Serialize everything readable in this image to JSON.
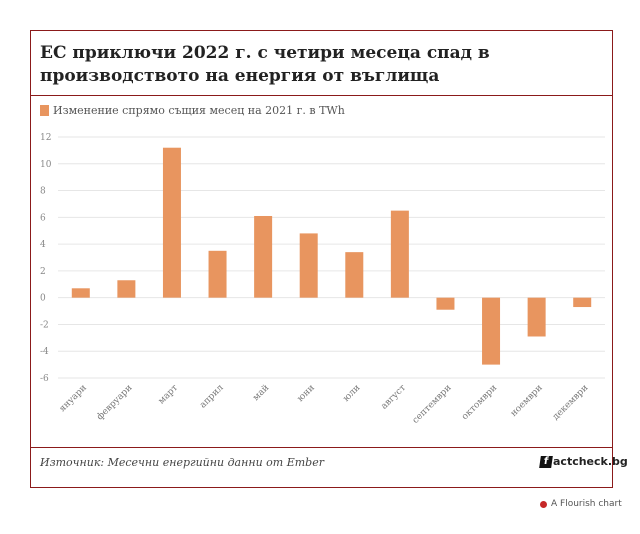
{
  "title": "ЕС приключи 2022 г. с четири месеца спад в производството на енергия от въглища",
  "legend": {
    "label": "Изменение спрямо същия месец на 2021 г. в TWh",
    "color": "#e8955f"
  },
  "source": "Източник: Месечни енергийни данни от Ember",
  "brand": {
    "mark": "f",
    "name": "actcheck.bg"
  },
  "flourish": "A Flourish chart",
  "chart_data": {
    "type": "bar",
    "categories": [
      "януари",
      "февруари",
      "март",
      "април",
      "май",
      "юни",
      "юли",
      "август",
      "септември",
      "октомври",
      "ноември",
      "декември"
    ],
    "series": [
      {
        "values": [
          0.7,
          1.3,
          11.2,
          3.5,
          6.1,
          4.8,
          3.4,
          6.5,
          -0.9,
          -5.0,
          -2.9,
          -0.7
        ]
      }
    ],
    "yticks": [
      12,
      10,
      8,
      6,
      4,
      2,
      0,
      -2,
      -4,
      -6
    ],
    "ylim": [
      -6,
      12
    ],
    "grid": true,
    "bar_color": "#e8955f",
    "legend_position": "top-left"
  }
}
